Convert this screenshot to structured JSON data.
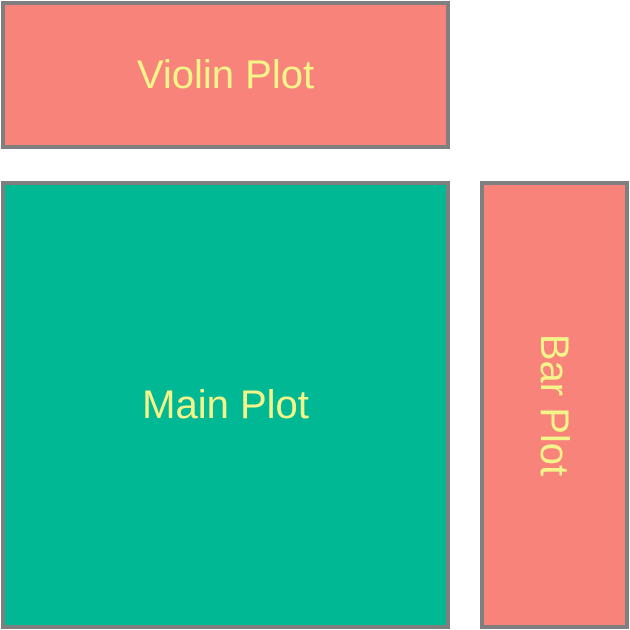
{
  "panels": {
    "violin": {
      "label": "Violin Plot",
      "fill": "#f8837a",
      "text_color": "#f3f48a"
    },
    "main": {
      "label": "Main Plot",
      "fill": "#00b894",
      "text_color": "#f3f48a"
    },
    "bar": {
      "label": "Bar Plot",
      "fill": "#f8837a",
      "text_color": "#f3f48a"
    }
  },
  "border_color": "#7f7f7f",
  "background_color": "#ffffff"
}
